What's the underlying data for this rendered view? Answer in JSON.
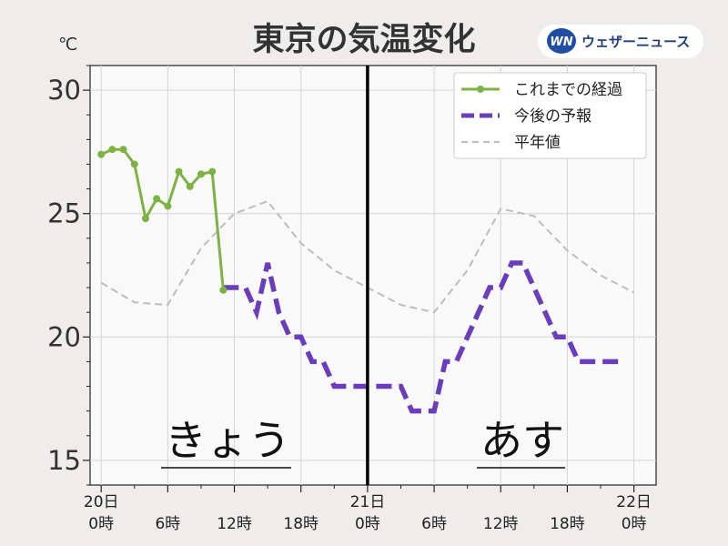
{
  "header": {
    "title": "東京の気温変化",
    "unit": "℃",
    "brand": {
      "mark": "WN",
      "name": "ウェザーニュース"
    }
  },
  "chart_data": {
    "type": "line",
    "title": "東京の気温変化",
    "ylabel": "℃",
    "ylim": [
      14,
      31
    ],
    "y_ticks": [
      15,
      20,
      25,
      30
    ],
    "x_range_hours": [
      -1,
      50
    ],
    "x_ticks": [
      {
        "hour": 0,
        "line1": "20日",
        "line2": "0時"
      },
      {
        "hour": 6,
        "line1": "",
        "line2": "6時"
      },
      {
        "hour": 12,
        "line1": "",
        "line2": "12時"
      },
      {
        "hour": 18,
        "line1": "",
        "line2": "18時"
      },
      {
        "hour": 24,
        "line1": "21日",
        "line2": "0時"
      },
      {
        "hour": 30,
        "line1": "",
        "line2": "6時"
      },
      {
        "hour": 36,
        "line1": "",
        "line2": "12時"
      },
      {
        "hour": 42,
        "line1": "",
        "line2": "18時"
      },
      {
        "hour": 48,
        "line1": "22日",
        "line2": "0時"
      }
    ],
    "divider_hour": 24,
    "grid": true,
    "legend_position": "top-right",
    "series": [
      {
        "name": "これまでの経過",
        "style": "solid-markers",
        "color": "#7cb342",
        "x": [
          0,
          1,
          2,
          3,
          4,
          5,
          6,
          7,
          8,
          9,
          10,
          11
        ],
        "y": [
          27.4,
          27.6,
          27.6,
          27.0,
          24.8,
          25.6,
          25.3,
          26.7,
          26.1,
          26.6,
          26.7,
          21.9
        ]
      },
      {
        "name": "今後の予報",
        "style": "dashed",
        "color": "#6a3dbd",
        "x": [
          11,
          12,
          13,
          14,
          15,
          16,
          17,
          18,
          19,
          20,
          21,
          22,
          23,
          24,
          25,
          26,
          27,
          28,
          29,
          30,
          31,
          32,
          33,
          34,
          35,
          36,
          37,
          38,
          39,
          40,
          41,
          42,
          43,
          44,
          45,
          46,
          47
        ],
        "y": [
          22,
          22,
          22,
          21,
          23,
          21,
          20,
          20,
          19,
          19,
          18,
          18,
          18,
          18,
          18,
          18,
          18,
          17,
          17,
          17,
          19,
          19,
          20,
          21,
          22,
          22,
          23,
          23,
          22,
          21,
          20,
          20,
          19,
          19,
          19,
          19,
          19
        ]
      },
      {
        "name": "平年値",
        "style": "dashed-thin",
        "color": "#bdbdbd",
        "x": [
          0,
          3,
          6,
          9,
          12,
          15,
          18,
          21,
          24,
          27,
          30,
          33,
          36,
          39,
          42,
          45,
          48
        ],
        "y": [
          22.2,
          21.4,
          21.3,
          23.6,
          25.0,
          25.5,
          23.8,
          22.7,
          22.0,
          21.3,
          21.0,
          22.7,
          25.2,
          24.9,
          23.5,
          22.5,
          21.8
        ]
      }
    ]
  },
  "labels": {
    "today": "きょう",
    "tomorrow": "あす"
  }
}
